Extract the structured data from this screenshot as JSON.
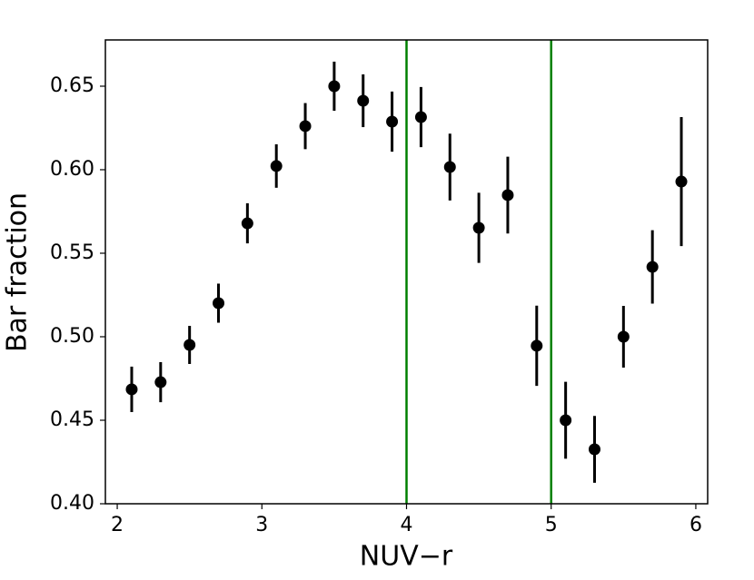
{
  "chart_data": {
    "type": "scatter",
    "xlabel": "NUV−r",
    "ylabel": "Bar fraction",
    "x": [
      2.1,
      2.3,
      2.5,
      2.7,
      2.9,
      3.1,
      3.3,
      3.5,
      3.7,
      3.9,
      4.1,
      4.3,
      4.5,
      4.7,
      4.9,
      5.1,
      5.3,
      5.5,
      5.7,
      5.9
    ],
    "series": [
      {
        "color": "#000000",
        "values": [
          0.4685,
          0.4728,
          0.4951,
          0.5201,
          0.5679,
          0.6022,
          0.6261,
          0.65,
          0.6413,
          0.6288,
          0.6315,
          0.6016,
          0.5652,
          0.5848,
          0.4946,
          0.45,
          0.4326,
          0.5,
          0.5418,
          0.5929
        ],
        "errors": [
          0.0136,
          0.012,
          0.0114,
          0.0117,
          0.012,
          0.013,
          0.0138,
          0.0147,
          0.0158,
          0.018,
          0.018,
          0.02,
          0.021,
          0.023,
          0.024,
          0.023,
          0.02,
          0.0185,
          0.022,
          0.0386
        ]
      }
    ],
    "vlines": [
      4,
      5
    ],
    "vline_color": "#008000",
    "xlim": [
      1.918,
      6.082
    ],
    "ylim": [
      0.4,
      0.6777
    ],
    "xticks": [
      2,
      3,
      4,
      5,
      6
    ],
    "yticks": [
      {
        "value": 0.4,
        "label": "0.40"
      },
      0.45,
      {
        "value": 0.5,
        "label": "0.50"
      },
      0.55,
      {
        "value": 0.6,
        "label": "0.60"
      },
      0.65
    ],
    "grid": false
  }
}
